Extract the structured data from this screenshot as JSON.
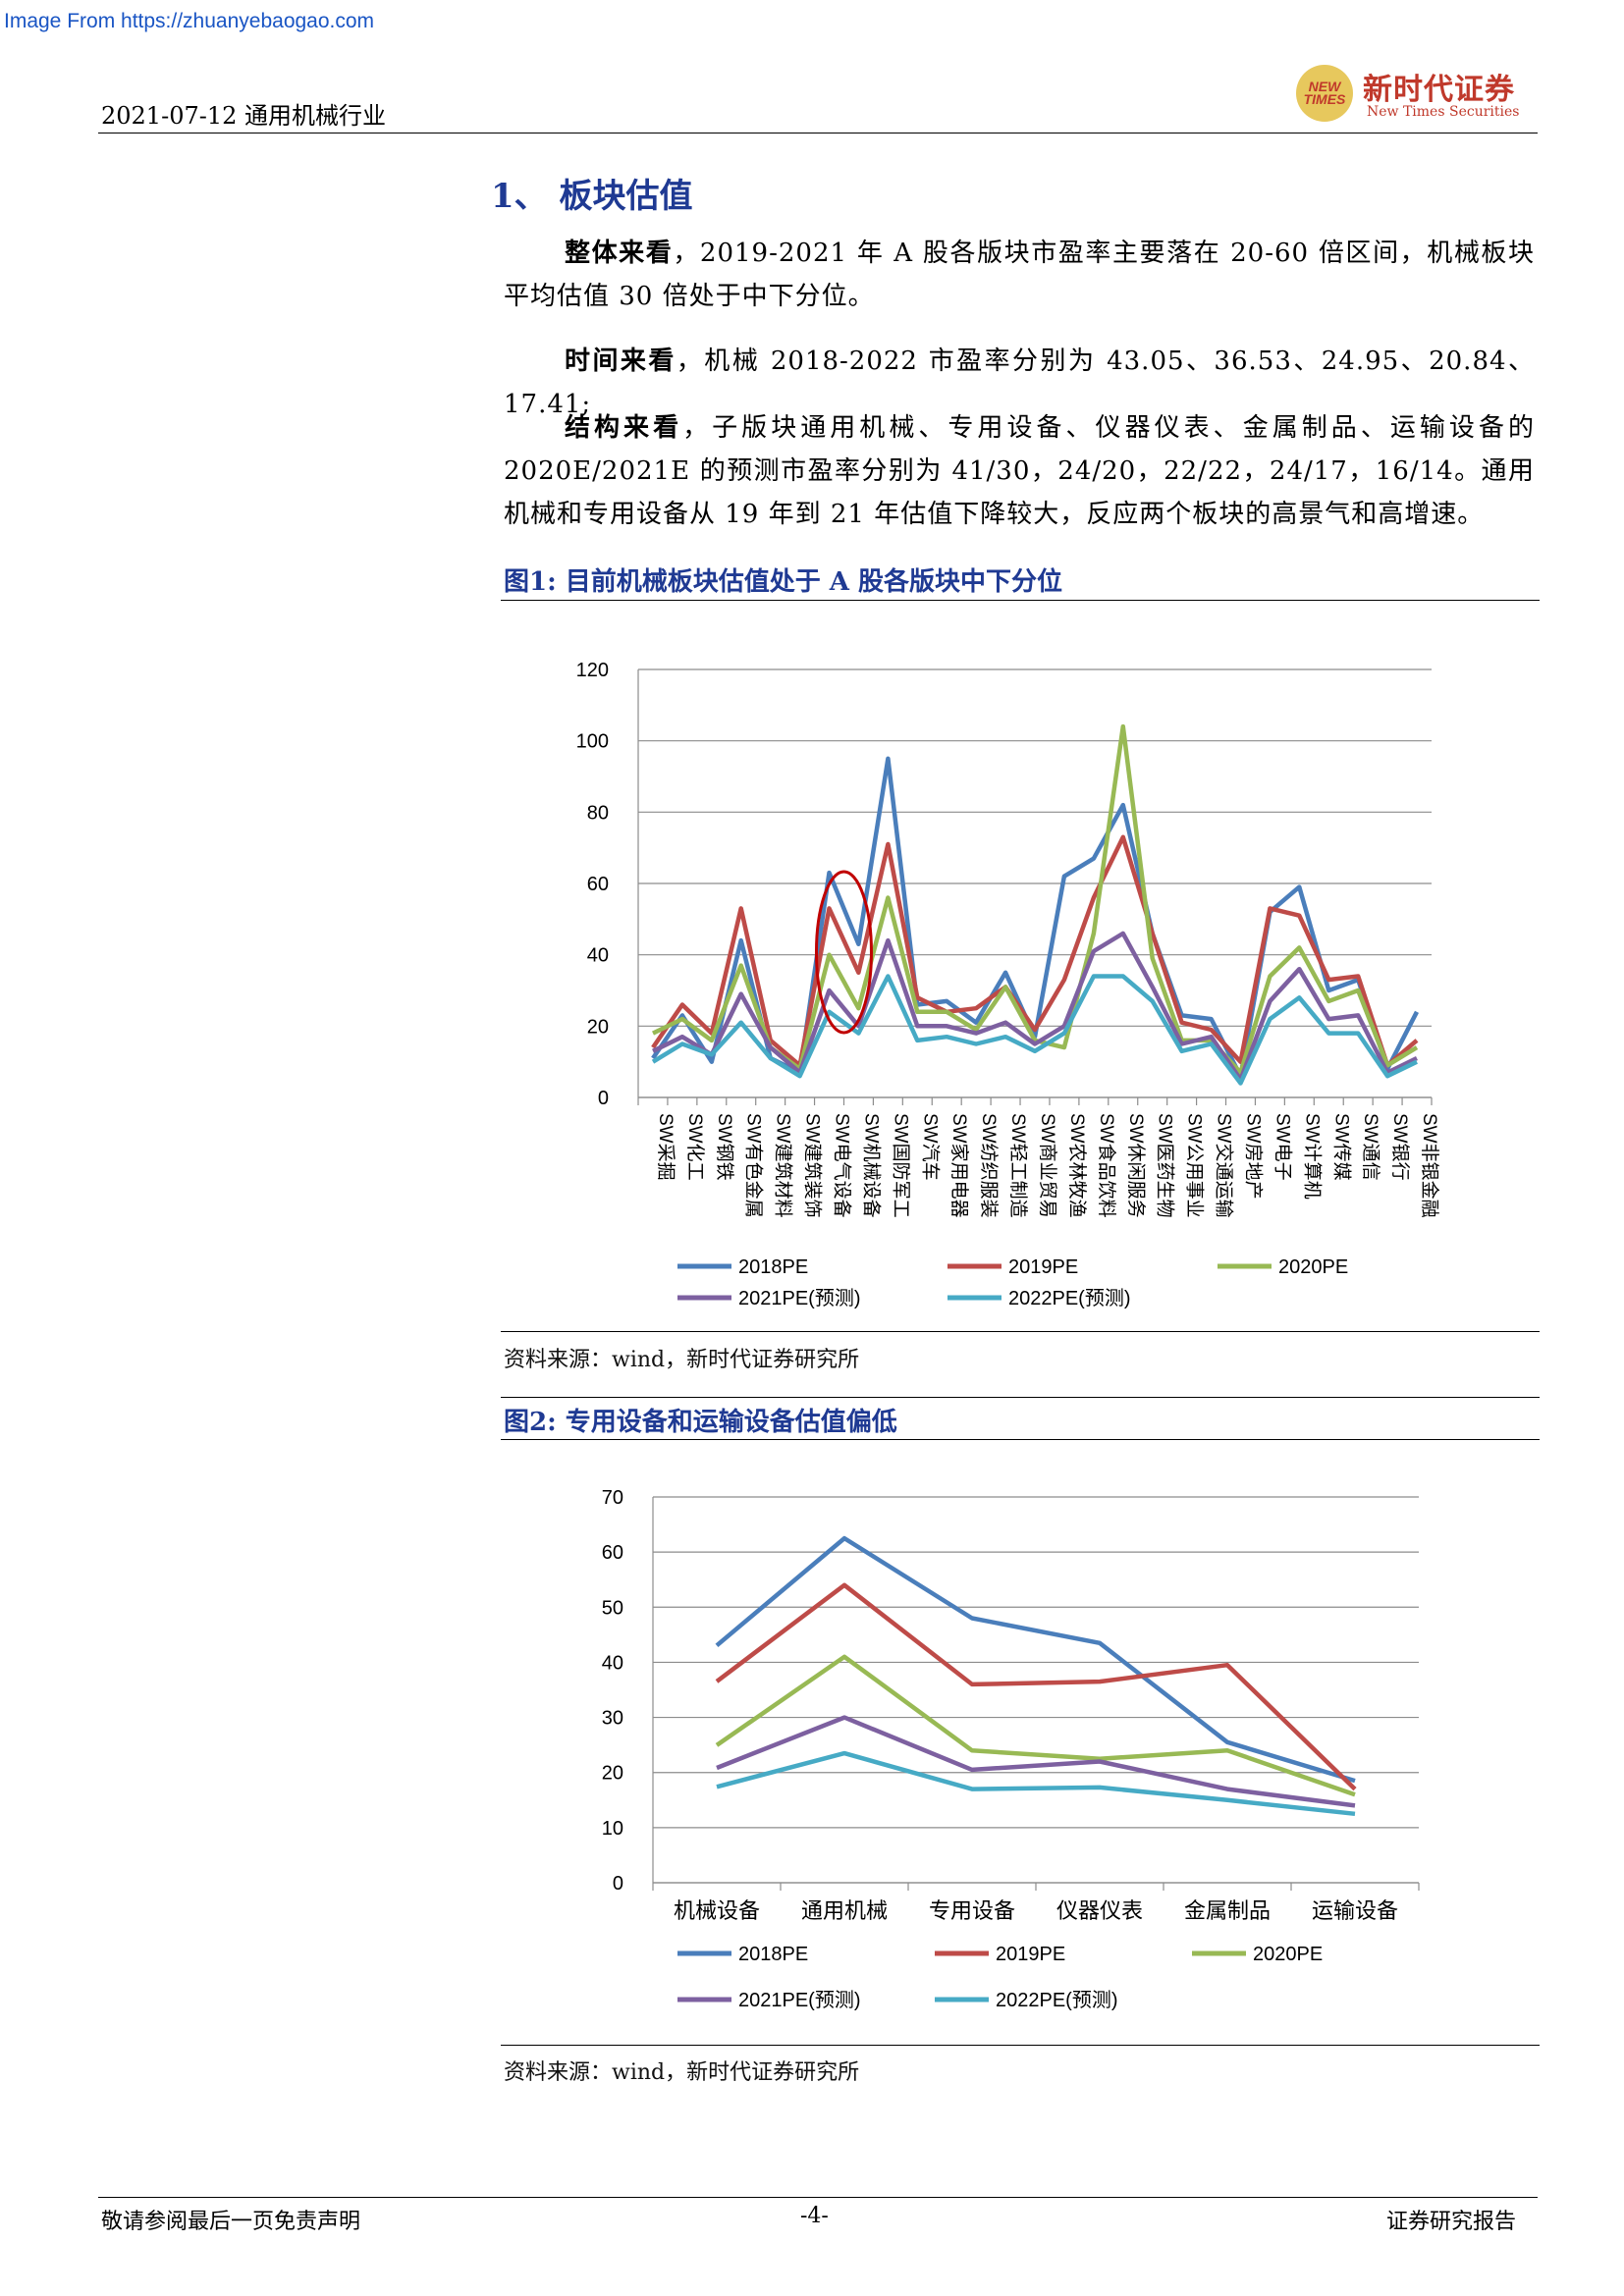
{
  "source_link": "Image From https://zhuanyebaogao.com",
  "header": {
    "date_industry": "2021-07-12  通用机械行业",
    "logo_en_circle": "NEW TIMES",
    "logo_cn": "新时代证券",
    "logo_en": "New Times Securities"
  },
  "section": {
    "title": "1、  板块估值"
  },
  "paragraphs": [
    {
      "lead": "整体来看",
      "text": "，2019-2021 年 A 股各版块市盈率主要落在 20-60 倍区间，机械板块平均估值 30 倍处于中下分位。"
    },
    {
      "lead": "时间来看",
      "text": "，机械 2018-2022 市盈率分别为 43.05、36.53、24.95、20.84、17.41;"
    },
    {
      "lead": "结构来看",
      "text": "，子版块通用机械、专用设备、仪器仪表、金属制品、运输设备的 2020E/2021E 的预测市盈率分别为 41/30，24/20，22/22，24/17，16/14。通用机械和专用设备从 19 年到 21 年估值下降较大，反应两个板块的高景气和高增速。"
    }
  ],
  "figure1": {
    "title": "图1:    目前机械板块估值处于 A 股各版块中下分位",
    "source": "资料来源：wind，新时代证券研究所"
  },
  "figure2": {
    "title": "图2:    专用设备和运输设备估值偏低",
    "source": "资料来源：wind，新时代证券研究所"
  },
  "chart_data": [
    {
      "type": "line",
      "categories": [
        "SW采掘",
        "SW化工",
        "SW钢铁",
        "SW有色金属",
        "SW建筑材料",
        "SW建筑装饰",
        "SW电气设备",
        "SW机械设备",
        "SW国防军工",
        "SW汽车",
        "SW家用电器",
        "SW纺织服装",
        "SW轻工制造",
        "SW商业贸易",
        "SW农林牧渔",
        "SW食品饮料",
        "SW休闲服务",
        "SW医药生物",
        "SW公用事业",
        "SW交通运输",
        "SW房地产",
        "SW电子",
        "SW计算机",
        "SW传媒",
        "SW通信",
        "SW银行",
        "SW非银金融"
      ],
      "ylim": [
        0,
        120
      ],
      "yticks": [
        "0",
        "20",
        "40",
        "60",
        "80",
        "100",
        "120"
      ],
      "colors": [
        "#4a7ebb",
        "#be4b48",
        "#98b954",
        "#7d60a0",
        "#46aac5"
      ],
      "series": [
        {
          "name": "2018PE",
          "values": [
            11,
            23,
            10,
            44,
            11,
            7,
            63,
            43,
            95,
            26,
            27,
            21,
            35,
            17,
            62,
            67,
            82,
            46,
            23,
            22,
            6,
            52,
            59,
            30,
            33,
            8,
            24
          ]
        },
        {
          "name": "2019PE",
          "values": [
            14,
            26,
            18,
            53,
            16,
            9,
            53,
            35,
            71,
            28,
            24,
            25,
            31,
            19,
            33,
            56,
            73,
            46,
            21,
            19,
            10,
            53,
            51,
            33,
            34,
            9,
            16
          ]
        },
        {
          "name": "2020PE",
          "values": [
            18,
            22,
            16,
            37,
            14,
            8,
            40,
            25,
            56,
            24,
            24,
            19,
            31,
            16,
            14,
            46,
            104,
            39,
            16,
            16,
            7,
            34,
            42,
            27,
            30,
            9,
            14
          ]
        },
        {
          "name": "2021PE(预测)",
          "values": [
            13,
            17,
            12,
            29,
            14,
            7,
            30,
            20,
            44,
            20,
            20,
            18,
            21,
            15,
            20,
            41,
            46,
            31,
            15,
            17,
            5,
            27,
            36,
            22,
            23,
            7,
            11
          ]
        },
        {
          "name": "2022PE(预测)",
          "values": [
            10,
            15,
            12,
            21,
            11,
            6,
            24,
            18,
            34,
            16,
            17,
            15,
            17,
            13,
            18,
            34,
            34,
            27,
            13,
            15,
            4,
            22,
            28,
            18,
            18,
            6,
            10
          ]
        }
      ]
    },
    {
      "type": "line",
      "categories": [
        "机械设备",
        "通用机械",
        "专用设备",
        "仪器仪表",
        "金属制品",
        "运输设备"
      ],
      "ylim": [
        0,
        70
      ],
      "yticks": [
        "0",
        "10",
        "20",
        "30",
        "40",
        "50",
        "60",
        "70"
      ],
      "colors": [
        "#4a7ebb",
        "#be4b48",
        "#98b954",
        "#7d60a0",
        "#46aac5"
      ],
      "series": [
        {
          "name": "2018PE",
          "values": [
            43.05,
            62.5,
            48,
            43.5,
            25.5,
            18.5
          ]
        },
        {
          "name": "2019PE",
          "values": [
            36.53,
            54,
            36,
            36.5,
            39.5,
            17
          ]
        },
        {
          "name": "2020PE",
          "values": [
            24.95,
            41,
            24,
            22.5,
            24,
            16
          ]
        },
        {
          "name": "2021PE(预测)",
          "values": [
            20.84,
            30,
            20.5,
            22,
            17,
            14
          ]
        },
        {
          "name": "2022PE(预测)",
          "values": [
            17.41,
            23.5,
            17,
            17.3,
            15,
            12.5
          ]
        }
      ]
    }
  ],
  "footer": {
    "disclaimer": "敬请参阅最后一页免责声明",
    "page": "-4-",
    "report_type": "证券研究报告"
  }
}
